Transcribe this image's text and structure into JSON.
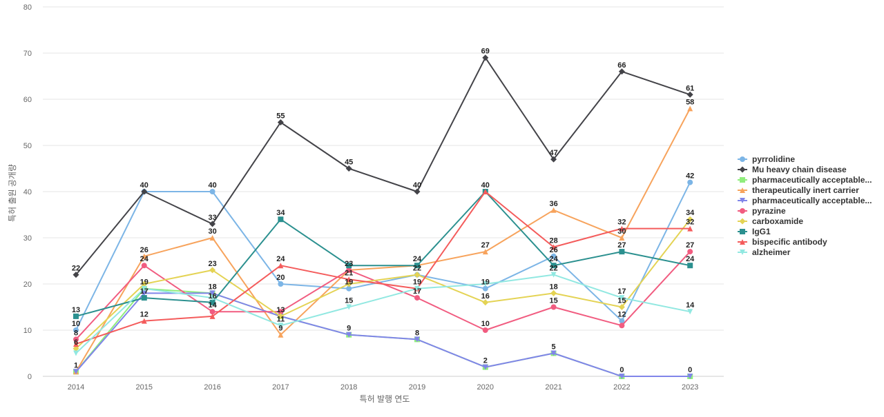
{
  "chart_data": {
    "type": "line",
    "title": "",
    "xlabel": "특허 발행 연도",
    "ylabel": "특허 출원 공개량",
    "ylim": [
      0,
      80
    ],
    "yticks": [
      0,
      10,
      20,
      30,
      40,
      50,
      60,
      70,
      80
    ],
    "grid": true,
    "legend_position": "right",
    "categories": [
      "2014",
      "2015",
      "2016",
      "2017",
      "2018",
      "2019",
      "2020",
      "2021",
      "2022",
      "2023"
    ],
    "series": [
      {
        "name": "pyrrolidine",
        "color": "#7cb5e6",
        "marker": "circle",
        "values": [
          10,
          40,
          40,
          20,
          19,
          22,
          19,
          26,
          12,
          42
        ]
      },
      {
        "name": "Mu heavy chain disease",
        "color": "#434348",
        "marker": "diamond",
        "values": [
          22,
          40,
          33,
          55,
          45,
          40,
          69,
          47,
          66,
          61
        ]
      },
      {
        "name": "pharmaceutically acceptable...",
        "color": "#90ed7d",
        "marker": "square",
        "values": [
          1,
          19,
          18,
          13,
          9,
          8,
          2,
          5,
          0,
          0
        ]
      },
      {
        "name": "therapeutically inert carrier",
        "color": "#f7a35c",
        "marker": "triangle",
        "values": [
          1,
          26,
          30,
          9,
          23,
          24,
          27,
          36,
          30,
          58
        ]
      },
      {
        "name": "pharmaceutically acceptable...",
        "color": "#8085e9",
        "marker": "triangle-down",
        "values": [
          1,
          18,
          18,
          13,
          9,
          8,
          2,
          5,
          0,
          0
        ]
      },
      {
        "name": "pyrazine",
        "color": "#f15c80",
        "marker": "circle",
        "values": [
          8,
          24,
          14,
          14,
          23,
          17,
          10,
          15,
          11,
          27
        ]
      },
      {
        "name": "carboxamide",
        "color": "#e4d354",
        "marker": "diamond",
        "values": [
          6,
          20,
          23,
          13,
          20,
          22,
          16,
          18,
          15,
          34
        ]
      },
      {
        "name": "IgG1",
        "color": "#2b908f",
        "marker": "square",
        "values": [
          13,
          17,
          16,
          34,
          24,
          24,
          40,
          24,
          27,
          24
        ]
      },
      {
        "name": "bispecific antibody",
        "color": "#f45b5b",
        "marker": "triangle",
        "values": [
          7,
          12,
          13,
          24,
          21,
          19,
          40,
          28,
          32,
          32
        ]
      },
      {
        "name": "alzheimer",
        "color": "#91e8e1",
        "marker": "triangle-down",
        "values": [
          5,
          19,
          17,
          11,
          15,
          19,
          20,
          22,
          17,
          14
        ]
      }
    ],
    "data_labels": [
      {
        "category": "2014",
        "value": 22,
        "text": "22"
      },
      {
        "category": "2014",
        "value": 13,
        "text": "13"
      },
      {
        "category": "2014",
        "value": 10,
        "text": "10"
      },
      {
        "category": "2014",
        "value": 8,
        "text": "8"
      },
      {
        "category": "2014",
        "value": 6,
        "text": "6"
      },
      {
        "category": "2014",
        "value": 1,
        "text": "1"
      },
      {
        "category": "2015",
        "value": 40,
        "text": "40"
      },
      {
        "category": "2015",
        "value": 26,
        "text": "26"
      },
      {
        "category": "2015",
        "value": 24,
        "text": "24"
      },
      {
        "category": "2015",
        "value": 19,
        "text": "19"
      },
      {
        "category": "2015",
        "value": 17,
        "text": "17"
      },
      {
        "category": "2015",
        "value": 12,
        "text": "12"
      },
      {
        "category": "2016",
        "value": 40,
        "text": "40"
      },
      {
        "category": "2016",
        "value": 33,
        "text": "33"
      },
      {
        "category": "2016",
        "value": 30,
        "text": "30"
      },
      {
        "category": "2016",
        "value": 23,
        "text": "23"
      },
      {
        "category": "2016",
        "value": 18,
        "text": "18"
      },
      {
        "category": "2016",
        "value": 16,
        "text": "16"
      },
      {
        "category": "2016",
        "value": 14,
        "text": "14"
      },
      {
        "category": "2017",
        "value": 55,
        "text": "55"
      },
      {
        "category": "2017",
        "value": 34,
        "text": "34"
      },
      {
        "category": "2017",
        "value": 24,
        "text": "24"
      },
      {
        "category": "2017",
        "value": 20,
        "text": "20"
      },
      {
        "category": "2017",
        "value": 13,
        "text": "13"
      },
      {
        "category": "2017",
        "value": 11,
        "text": "11"
      },
      {
        "category": "2017",
        "value": 9,
        "text": "9"
      },
      {
        "category": "2018",
        "value": 45,
        "text": "45"
      },
      {
        "category": "2018",
        "value": 23,
        "text": "23"
      },
      {
        "category": "2018",
        "value": 21,
        "text": "21"
      },
      {
        "category": "2018",
        "value": 19,
        "text": "19"
      },
      {
        "category": "2018",
        "value": 15,
        "text": "15"
      },
      {
        "category": "2018",
        "value": 9,
        "text": "9"
      },
      {
        "category": "2019",
        "value": 40,
        "text": "40"
      },
      {
        "category": "2019",
        "value": 24,
        "text": "24"
      },
      {
        "category": "2019",
        "value": 22,
        "text": "22"
      },
      {
        "category": "2019",
        "value": 19,
        "text": "19"
      },
      {
        "category": "2019",
        "value": 17,
        "text": "17"
      },
      {
        "category": "2019",
        "value": 8,
        "text": "8"
      },
      {
        "category": "2020",
        "value": 69,
        "text": "69"
      },
      {
        "category": "2020",
        "value": 40,
        "text": "40"
      },
      {
        "category": "2020",
        "value": 27,
        "text": "27"
      },
      {
        "category": "2020",
        "value": 19,
        "text": "19"
      },
      {
        "category": "2020",
        "value": 16,
        "text": "16"
      },
      {
        "category": "2020",
        "value": 10,
        "text": "10"
      },
      {
        "category": "2020",
        "value": 2,
        "text": "2"
      },
      {
        "category": "2021",
        "value": 47,
        "text": "47"
      },
      {
        "category": "2021",
        "value": 36,
        "text": "36"
      },
      {
        "category": "2021",
        "value": 28,
        "text": "28"
      },
      {
        "category": "2021",
        "value": 26,
        "text": "26"
      },
      {
        "category": "2021",
        "value": 24,
        "text": "24"
      },
      {
        "category": "2021",
        "value": 22,
        "text": "22"
      },
      {
        "category": "2021",
        "value": 18,
        "text": "18"
      },
      {
        "category": "2021",
        "value": 15,
        "text": "15"
      },
      {
        "category": "2021",
        "value": 5,
        "text": "5"
      },
      {
        "category": "2022",
        "value": 66,
        "text": "66"
      },
      {
        "category": "2022",
        "value": 32,
        "text": "32"
      },
      {
        "category": "2022",
        "value": 30,
        "text": "30"
      },
      {
        "category": "2022",
        "value": 27,
        "text": "27"
      },
      {
        "category": "2022",
        "value": 17,
        "text": "17"
      },
      {
        "category": "2022",
        "value": 15,
        "text": "15"
      },
      {
        "category": "2022",
        "value": 12,
        "text": "12"
      },
      {
        "category": "2022",
        "value": 0,
        "text": "0"
      },
      {
        "category": "2023",
        "value": 61,
        "text": "61"
      },
      {
        "category": "2023",
        "value": 58,
        "text": "58"
      },
      {
        "category": "2023",
        "value": 42,
        "text": "42"
      },
      {
        "category": "2023",
        "value": 34,
        "text": "34"
      },
      {
        "category": "2023",
        "value": 32,
        "text": "32"
      },
      {
        "category": "2023",
        "value": 27,
        "text": "27"
      },
      {
        "category": "2023",
        "value": 24,
        "text": "24"
      },
      {
        "category": "2023",
        "value": 14,
        "text": "14"
      },
      {
        "category": "2023",
        "value": 0,
        "text": "0"
      }
    ]
  }
}
